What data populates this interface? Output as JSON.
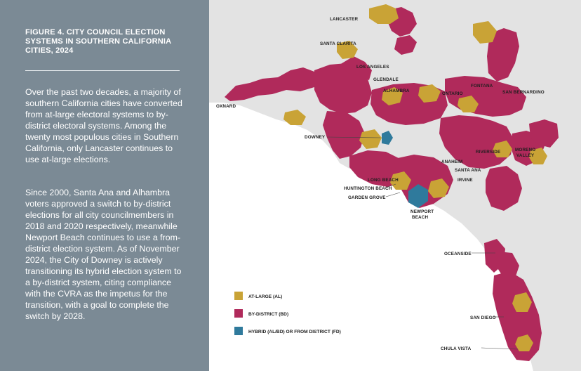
{
  "figure_title": "FIGURE 4. CITY COUNCIL ELECTION SYSTEMS IN SOUTHERN CALIFORNIA CITIES, 2024",
  "paragraphs": [
    "Over the past two decades, a majority of southern California cities have converted from at-large electoral systems to by-district electoral systems. Among the twenty most populous cities in Southern California, only Lancaster continues to use at-large elections.",
    "Since 2000, Santa Ana and Alhambra voters approved a switch to by-district elections for all city councilmembers in 2018 and 2020 respectively, meanwhile Newport Beach continues to use a from-district election system. As of November 2024, the City of Downey is actively transitioning its hybrid election system to a by-district system, citing compliance with the CVRA as the impetus for the transition, with a goal to complete the switch by 2028."
  ],
  "colors": {
    "at_large": "#c9a336",
    "by_district": "#b02a5b",
    "hybrid": "#2f7a9c",
    "land": "#e3e3e3",
    "ocean": "#ffffff",
    "panel": "#7b8a95"
  },
  "legend": [
    {
      "label": "AT-LARGE (AL)",
      "color": "#c9a336"
    },
    {
      "label": "BY-DISTRICT (BD)",
      "color": "#b02a5b"
    },
    {
      "label": "HYBRID (AL/BD) OR FROM DISTRICT (FD)",
      "color": "#2f7a9c"
    }
  ],
  "cities": {
    "lancaster": "LANCASTER",
    "santa_clarita": "SANTA CLARITA",
    "los_angeles": "LOS ANGELES",
    "glendale": "GLENDALE",
    "alhambra": "ALHAMBRA",
    "oxnard": "OXNARD",
    "ontario": "ONTARIO",
    "fontana": "FONTANA",
    "san_bernardino": "SAN BERNARDINO",
    "downey": "DOWNEY",
    "riverside": "RIVERSIDE",
    "moreno": "MORENO",
    "valley": "VALLEY",
    "anaheim": "ANAHEIM",
    "santa_ana": "SANTA ANA",
    "long_beach": "LONG BEACH",
    "irvine": "IRVINE",
    "huntington_beach": "HUNTINGTON BEACH",
    "garden_grove": "GARDEN GROVE",
    "newport": "NEWPORT",
    "beach": "BEACH",
    "oceanside": "OCEANSIDE",
    "san_diego": "SAN DIEGO",
    "chula_vista": "CHULA VISTA"
  }
}
